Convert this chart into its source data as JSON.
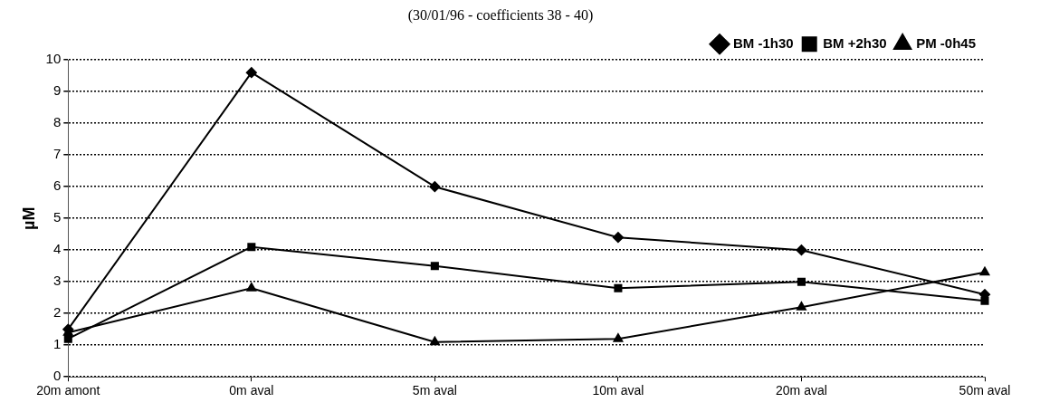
{
  "chart_data": {
    "type": "line",
    "subtitle": "(30/01/96 - coefficients 38 - 40)",
    "ylabel": "µM",
    "categories": [
      "20m amont",
      "0m aval",
      "5m aval",
      "10m aval",
      "20m aval",
      "50m aval"
    ],
    "series": [
      {
        "name": "BM -1h30",
        "color": "#000000",
        "marker": "diamond",
        "values": [
          1.5,
          9.6,
          6.0,
          4.4,
          4.0,
          2.6
        ]
      },
      {
        "name": "BM +2h30",
        "color": "#000000",
        "marker": "square",
        "values": [
          1.2,
          4.1,
          3.5,
          2.8,
          3.0,
          2.4
        ]
      },
      {
        "name": "PM -0h45",
        "color": "#000000",
        "marker": "triangle",
        "values": [
          1.4,
          2.8,
          1.1,
          1.2,
          2.2,
          3.3
        ]
      }
    ],
    "ylim": [
      0,
      10
    ],
    "yticks": [
      0,
      1,
      2,
      3,
      4,
      5,
      6,
      7,
      8,
      9,
      10
    ],
    "grid": "y",
    "legend": "top right",
    "line_style": "solid"
  }
}
